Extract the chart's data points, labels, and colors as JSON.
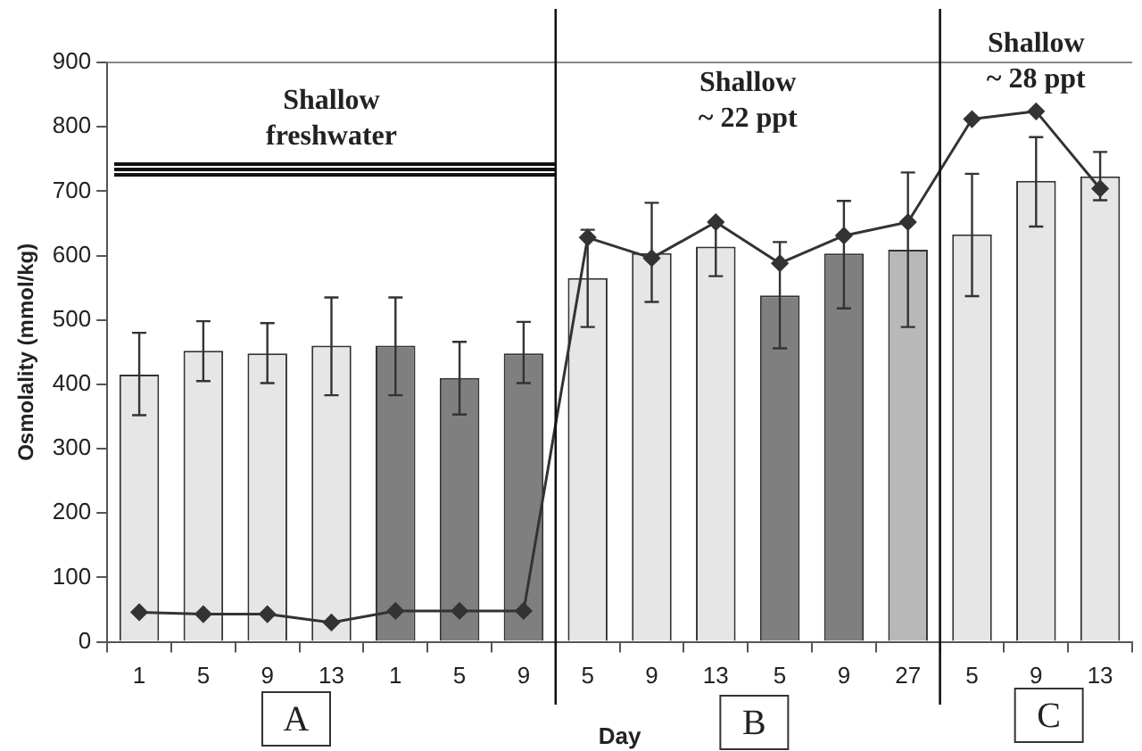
{
  "chart_data": {
    "type": "bar",
    "xlabel": "Day",
    "ylabel": "Osmolality (mmol/kg)",
    "categories": [
      "1",
      "5",
      "9",
      "13",
      "1",
      "5",
      "9",
      "5",
      "9",
      "13",
      "5",
      "9",
      "27",
      "5",
      "9",
      "13"
    ],
    "series": [
      {
        "colors": [
          "#e6e6e6",
          "#e6e6e6",
          "#e6e6e6",
          "#e6e6e6",
          "#7f7f7f",
          "#7f7f7f",
          "#7f7f7f",
          "#e6e6e6",
          "#e6e6e6",
          "#e6e6e6",
          "#7f7f7f",
          "#7f7f7f",
          "#b8b8b8",
          "#e6e6e6",
          "#e6e6e6",
          "#e6e6e6"
        ],
        "values": [
          415,
          452,
          448,
          460,
          460,
          410,
          448,
          565,
          604,
          614,
          538,
          603,
          609,
          633,
          716,
          723
        ],
        "errors": [
          [
            352,
            480
          ],
          [
            405,
            498
          ],
          [
            402,
            495
          ],
          [
            383,
            535
          ],
          [
            383,
            535
          ],
          [
            353,
            466
          ],
          [
            402,
            497
          ],
          [
            489,
            640
          ],
          [
            528,
            682
          ],
          [
            568,
            652
          ],
          [
            456,
            621
          ],
          [
            518,
            685
          ],
          [
            489,
            729
          ],
          [
            537,
            727
          ],
          [
            645,
            784
          ],
          [
            686,
            761
          ]
        ]
      },
      {
        "type": "line",
        "color": "#333333",
        "values": [
          46,
          43,
          43,
          30,
          48,
          48,
          48,
          628,
          596,
          652,
          588,
          631,
          652,
          812,
          824,
          704
        ]
      }
    ],
    "ylim": [
      0,
      900
    ],
    "yticks": [
      0,
      100,
      200,
      300,
      400,
      500,
      600,
      700,
      800,
      900
    ],
    "grid": false,
    "legend": false,
    "marker": "diamond",
    "line_style": "solid",
    "annotations": [
      "Shallow freshwater",
      "Shallow ~ 22 ppt",
      "Shallow ~ 28 ppt",
      "A",
      "B",
      "C"
    ]
  }
}
